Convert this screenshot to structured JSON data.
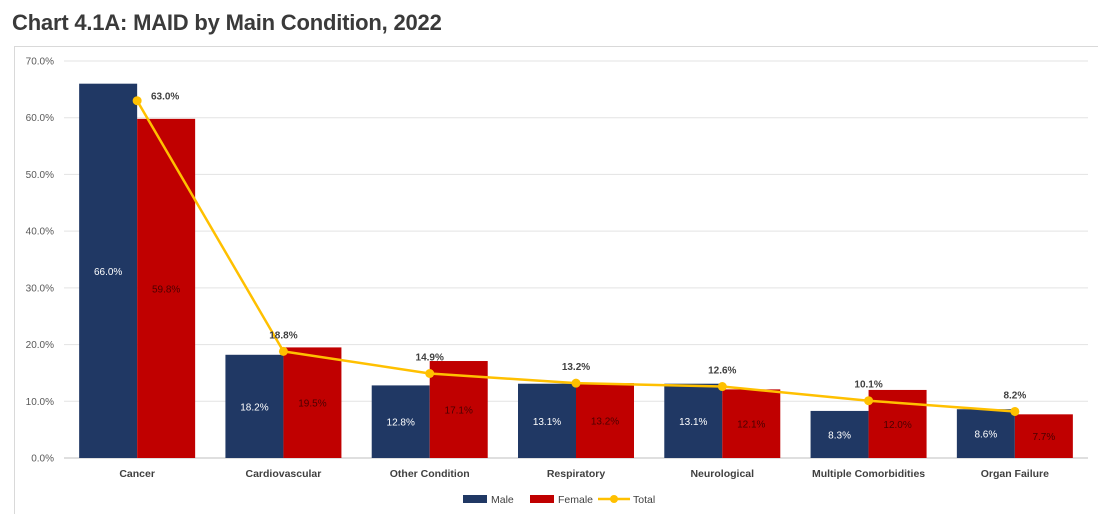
{
  "title": "Chart 4.1A: MAID by Main Condition, 2022",
  "colors": {
    "male": "#203864",
    "female": "#c00000",
    "total": "#ffc000",
    "grid": "#e3e3e3"
  },
  "chart_data": {
    "type": "bar",
    "title": "Chart 4.1A: MAID by Main Condition, 2022",
    "categories": [
      "Cancer",
      "Cardiovascular",
      "Other Condition",
      "Respiratory",
      "Neurological",
      "Multiple Comorbidities",
      "Organ Failure"
    ],
    "series": [
      {
        "name": "Male",
        "type": "bar",
        "values": [
          66.0,
          18.2,
          12.8,
          13.1,
          13.1,
          8.3,
          8.6
        ],
        "labels": [
          "66.0%",
          "18.2%",
          "12.8%",
          "13.1%",
          "13.1%",
          "8.3%",
          "8.6%"
        ]
      },
      {
        "name": "Female",
        "type": "bar",
        "values": [
          59.8,
          19.5,
          17.1,
          13.2,
          12.1,
          12.0,
          7.7
        ],
        "labels": [
          "59.8%",
          "19.5%",
          "17.1%",
          "13.2%",
          "12.1%",
          "12.0%",
          "7.7%"
        ]
      },
      {
        "name": "Total",
        "type": "line",
        "values": [
          63.0,
          18.8,
          14.9,
          13.2,
          12.6,
          10.1,
          8.2
        ],
        "labels": [
          "63.0%",
          "18.8%",
          "14.9%",
          "13.2%",
          "12.6%",
          "10.1%",
          "8.2%"
        ]
      }
    ],
    "y_ticks": [
      "0.0%",
      "10.0%",
      "20.0%",
      "30.0%",
      "40.0%",
      "50.0%",
      "60.0%",
      "70.0%"
    ],
    "ylim": [
      0,
      70
    ],
    "grid": true,
    "legend": "bottom-center",
    "xlabel": "",
    "ylabel": ""
  }
}
